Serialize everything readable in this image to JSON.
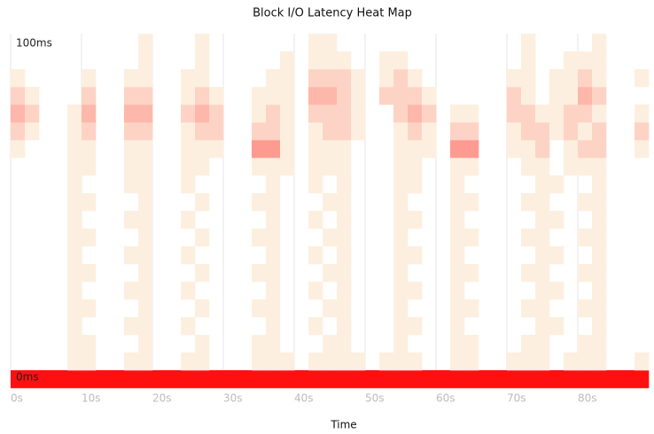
{
  "chart_data": {
    "type": "heatmap",
    "title": "Block I/O Latency Heat Map",
    "x_label": "Time",
    "xlim": [
      0,
      90
    ],
    "ylim": [
      0,
      100
    ],
    "xticks": [
      {
        "value": 0,
        "label": "0s"
      },
      {
        "value": 10,
        "label": "10s"
      },
      {
        "value": 20,
        "label": "20s"
      },
      {
        "value": 30,
        "label": "30s"
      },
      {
        "value": 40,
        "label": "40s"
      },
      {
        "value": 50,
        "label": "50s"
      },
      {
        "value": 60,
        "label": "60s"
      },
      {
        "value": 70,
        "label": "70s"
      },
      {
        "value": 80,
        "label": "80s"
      }
    ],
    "yticks": [
      {
        "value": 0,
        "label": "0ms"
      },
      {
        "value": 100,
        "label": "100ms"
      }
    ],
    "grid": true,
    "color_low": "#fdefdf",
    "color_high": "#ff1010",
    "zmax": 9,
    "z": [
      [
        9,
        9,
        9,
        9,
        9,
        9,
        9,
        9,
        9,
        9,
        9,
        9,
        9,
        9,
        9,
        9,
        9,
        9,
        9,
        9,
        9,
        9,
        9,
        9,
        9,
        9,
        9,
        9,
        9,
        9,
        9,
        9,
        9,
        9,
        9,
        9,
        9,
        9,
        9,
        9,
        9,
        9,
        9,
        9,
        9
      ],
      [
        0,
        0,
        0,
        0,
        1,
        1,
        0,
        0,
        1,
        1,
        0,
        0,
        1,
        1,
        0,
        0,
        0,
        1,
        1,
        1,
        0,
        1,
        1,
        1,
        1,
        0,
        1,
        1,
        1,
        0,
        0,
        1,
        1,
        0,
        0,
        1,
        1,
        1,
        0,
        1,
        1,
        1,
        0,
        0,
        1
      ],
      [
        0,
        0,
        0,
        0,
        1,
        1,
        0,
        0,
        0,
        1,
        0,
        0,
        0,
        1,
        0,
        0,
        0,
        1,
        1,
        0,
        0,
        0,
        1,
        1,
        0,
        0,
        0,
        1,
        0,
        0,
        0,
        1,
        1,
        0,
        0,
        0,
        1,
        1,
        0,
        0,
        1,
        1,
        0,
        0,
        0
      ],
      [
        0,
        0,
        0,
        0,
        1,
        0,
        0,
        0,
        1,
        1,
        0,
        0,
        1,
        0,
        0,
        0,
        0,
        0,
        1,
        0,
        0,
        1,
        0,
        1,
        0,
        0,
        0,
        1,
        1,
        0,
        0,
        1,
        0,
        0,
        0,
        0,
        0,
        1,
        1,
        0,
        0,
        1,
        0,
        0,
        0
      ],
      [
        0,
        0,
        0,
        0,
        1,
        1,
        0,
        0,
        0,
        1,
        0,
        0,
        0,
        1,
        0,
        0,
        0,
        1,
        1,
        0,
        0,
        0,
        1,
        1,
        0,
        0,
        0,
        1,
        0,
        0,
        0,
        1,
        1,
        0,
        0,
        0,
        1,
        1,
        0,
        0,
        1,
        1,
        0,
        0,
        0
      ],
      [
        0,
        0,
        0,
        0,
        1,
        0,
        0,
        0,
        1,
        1,
        0,
        0,
        1,
        0,
        0,
        0,
        0,
        0,
        1,
        0,
        0,
        1,
        0,
        1,
        0,
        0,
        0,
        1,
        1,
        0,
        0,
        1,
        0,
        0,
        0,
        0,
        0,
        1,
        1,
        0,
        0,
        1,
        0,
        0,
        0
      ],
      [
        0,
        0,
        0,
        0,
        1,
        1,
        0,
        0,
        0,
        1,
        0,
        0,
        0,
        1,
        0,
        0,
        0,
        1,
        1,
        0,
        0,
        0,
        1,
        1,
        0,
        0,
        0,
        1,
        0,
        0,
        0,
        1,
        1,
        0,
        0,
        0,
        1,
        1,
        0,
        0,
        1,
        1,
        0,
        0,
        0
      ],
      [
        0,
        0,
        0,
        0,
        1,
        0,
        0,
        0,
        1,
        1,
        0,
        0,
        1,
        0,
        0,
        0,
        0,
        0,
        1,
        0,
        0,
        1,
        0,
        1,
        0,
        0,
        0,
        1,
        1,
        0,
        0,
        1,
        0,
        0,
        0,
        0,
        0,
        1,
        1,
        0,
        0,
        1,
        0,
        0,
        0
      ],
      [
        0,
        0,
        0,
        0,
        1,
        1,
        0,
        0,
        0,
        1,
        0,
        0,
        0,
        1,
        0,
        0,
        0,
        1,
        1,
        0,
        0,
        0,
        1,
        1,
        0,
        0,
        0,
        1,
        0,
        0,
        0,
        1,
        1,
        0,
        0,
        0,
        1,
        1,
        0,
        0,
        1,
        1,
        0,
        0,
        0
      ],
      [
        0,
        0,
        0,
        0,
        1,
        0,
        0,
        0,
        1,
        1,
        0,
        0,
        1,
        0,
        0,
        0,
        0,
        0,
        1,
        0,
        0,
        1,
        0,
        1,
        0,
        0,
        0,
        1,
        1,
        0,
        0,
        1,
        0,
        0,
        0,
        0,
        0,
        1,
        1,
        0,
        0,
        1,
        0,
        0,
        0
      ],
      [
        0,
        0,
        0,
        0,
        1,
        1,
        0,
        0,
        0,
        1,
        0,
        0,
        0,
        1,
        0,
        0,
        0,
        1,
        1,
        0,
        0,
        0,
        1,
        1,
        0,
        0,
        0,
        1,
        0,
        0,
        0,
        1,
        1,
        0,
        0,
        0,
        1,
        1,
        0,
        0,
        1,
        1,
        0,
        0,
        0
      ],
      [
        0,
        0,
        0,
        0,
        1,
        0,
        0,
        0,
        1,
        1,
        0,
        0,
        1,
        0,
        0,
        0,
        0,
        0,
        1,
        0,
        0,
        1,
        0,
        1,
        0,
        0,
        0,
        1,
        1,
        0,
        0,
        1,
        0,
        0,
        0,
        0,
        0,
        1,
        1,
        0,
        0,
        1,
        0,
        0,
        0
      ],
      [
        0,
        0,
        0,
        0,
        1,
        1,
        0,
        0,
        1,
        1,
        0,
        0,
        1,
        1,
        0,
        0,
        0,
        1,
        1,
        1,
        0,
        1,
        1,
        1,
        0,
        0,
        0,
        1,
        1,
        0,
        0,
        1,
        1,
        0,
        0,
        0,
        1,
        1,
        0,
        1,
        1,
        1,
        0,
        0,
        0
      ],
      [
        1,
        0,
        0,
        0,
        1,
        1,
        0,
        0,
        1,
        1,
        0,
        0,
        1,
        1,
        1,
        0,
        0,
        4,
        4,
        1,
        0,
        1,
        1,
        1,
        0,
        0,
        0,
        1,
        1,
        1,
        0,
        4,
        4,
        0,
        0,
        1,
        1,
        2,
        0,
        1,
        2,
        2,
        0,
        0,
        1
      ],
      [
        2,
        1,
        0,
        0,
        1,
        2,
        0,
        0,
        2,
        2,
        0,
        0,
        1,
        2,
        2,
        0,
        0,
        2,
        2,
        1,
        0,
        1,
        2,
        2,
        1,
        0,
        0,
        1,
        2,
        1,
        0,
        2,
        2,
        0,
        0,
        1,
        2,
        2,
        1,
        2,
        1,
        2,
        0,
        0,
        2
      ],
      [
        3,
        2,
        0,
        0,
        1,
        3,
        0,
        0,
        3,
        3,
        0,
        0,
        2,
        3,
        2,
        0,
        0,
        1,
        2,
        1,
        0,
        2,
        2,
        2,
        1,
        0,
        0,
        2,
        3,
        2,
        0,
        1,
        1,
        0,
        0,
        2,
        2,
        1,
        1,
        2,
        2,
        1,
        0,
        0,
        1
      ],
      [
        2,
        1,
        0,
        0,
        0,
        2,
        0,
        0,
        2,
        2,
        0,
        0,
        1,
        2,
        1,
        0,
        0,
        1,
        1,
        1,
        0,
        3,
        3,
        2,
        1,
        0,
        2,
        2,
        2,
        1,
        0,
        0,
        0,
        0,
        0,
        2,
        1,
        0,
        1,
        1,
        3,
        2,
        0,
        0,
        0
      ],
      [
        1,
        0,
        0,
        0,
        0,
        1,
        0,
        0,
        1,
        1,
        0,
        0,
        1,
        1,
        0,
        0,
        0,
        0,
        1,
        1,
        0,
        2,
        2,
        2,
        1,
        0,
        1,
        2,
        1,
        0,
        0,
        0,
        0,
        0,
        0,
        1,
        1,
        0,
        1,
        1,
        2,
        1,
        0,
        0,
        1
      ],
      [
        0,
        0,
        0,
        0,
        0,
        0,
        0,
        0,
        0,
        1,
        0,
        0,
        0,
        1,
        0,
        0,
        0,
        0,
        0,
        1,
        0,
        1,
        1,
        1,
        0,
        0,
        1,
        1,
        0,
        0,
        0,
        0,
        0,
        0,
        0,
        0,
        1,
        0,
        0,
        1,
        1,
        1,
        0,
        0,
        0
      ],
      [
        0,
        0,
        0,
        0,
        0,
        0,
        0,
        0,
        0,
        1,
        0,
        0,
        0,
        1,
        0,
        0,
        0,
        0,
        0,
        0,
        0,
        1,
        1,
        0,
        0,
        0,
        0,
        0,
        0,
        0,
        0,
        0,
        0,
        0,
        0,
        0,
        1,
        0,
        0,
        0,
        0,
        1,
        0,
        0,
        0
      ]
    ]
  }
}
